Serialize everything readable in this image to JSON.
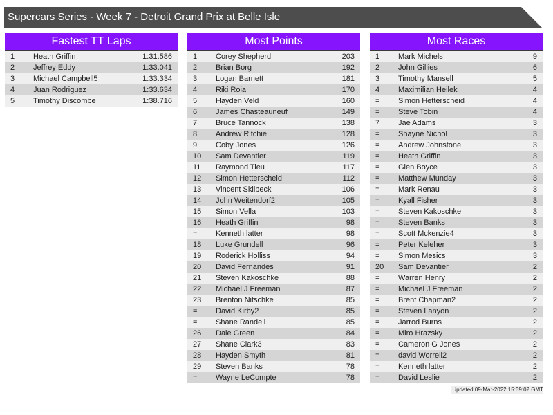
{
  "title": "Supercars Series - Week 7 - Detroit Grand Prix at Belle Isle",
  "colors": {
    "header_bar": "#4d4d4d",
    "panel_header": "#8614fc",
    "row_light": "#efefef",
    "row_dark": "#d5d5d5"
  },
  "panels": [
    {
      "title": "Fastest TT Laps",
      "rows": [
        [
          "1",
          "Heath Griffin",
          "1:31.586"
        ],
        [
          "2",
          "Jeffrey Eddy",
          "1:33.041"
        ],
        [
          "3",
          "Michael Campbell5",
          "1:33.334"
        ],
        [
          "4",
          "Juan Rodriguez",
          "1:33.634"
        ],
        [
          "5",
          "Timothy Discombe",
          "1:38.716"
        ]
      ]
    },
    {
      "title": "Most Points",
      "rows": [
        [
          "1",
          "Corey Shepherd",
          "203"
        ],
        [
          "2",
          "Brian Borg",
          "192"
        ],
        [
          "3",
          "Logan Barnett",
          "181"
        ],
        [
          "4",
          "Riki Roia",
          "170"
        ],
        [
          "5",
          "Hayden Veld",
          "160"
        ],
        [
          "6",
          "James Chasteauneuf",
          "149"
        ],
        [
          "7",
          "Bruce Tannock",
          "138"
        ],
        [
          "8",
          "Andrew Ritchie",
          "128"
        ],
        [
          "9",
          "Coby Jones",
          "126"
        ],
        [
          "10",
          "Sam Devantier",
          "119"
        ],
        [
          "11",
          "Raymond Tieu",
          "117"
        ],
        [
          "12",
          "Simon Hetterscheid",
          "112"
        ],
        [
          "13",
          "Vincent Skilbeck",
          "106"
        ],
        [
          "14",
          "John Weitendorf2",
          "105"
        ],
        [
          "15",
          "Simon Vella",
          "103"
        ],
        [
          "16",
          "Heath Griffin",
          "98"
        ],
        [
          "=",
          "Kenneth latter",
          "98"
        ],
        [
          "18",
          "Luke Grundell",
          "96"
        ],
        [
          "19",
          "Roderick Holliss",
          "94"
        ],
        [
          "20",
          "David Fernandes",
          "91"
        ],
        [
          "21",
          "Steven Kakoschke",
          "88"
        ],
        [
          "22",
          "Michael J Freeman",
          "87"
        ],
        [
          "23",
          "Brenton Nitschke",
          "85"
        ],
        [
          "=",
          "David Kirby2",
          "85"
        ],
        [
          "=",
          "Shane Randell",
          "85"
        ],
        [
          "26",
          "Dale Green",
          "84"
        ],
        [
          "27",
          "Shane Clark3",
          "83"
        ],
        [
          "28",
          "Hayden Smyth",
          "81"
        ],
        [
          "29",
          "Steven Banks",
          "78"
        ],
        [
          "=",
          "Wayne LeCompte",
          "78"
        ]
      ]
    },
    {
      "title": "Most Races",
      "rows": [
        [
          "1",
          "Mark Michels",
          "9"
        ],
        [
          "2",
          "John Gillies",
          "6"
        ],
        [
          "3",
          "Timothy Mansell",
          "5"
        ],
        [
          "4",
          "Maximilian Heilek",
          "4"
        ],
        [
          "=",
          "Simon Hetterscheid",
          "4"
        ],
        [
          "=",
          "Steve Tobin",
          "4"
        ],
        [
          "7",
          "Jae Adams",
          "3"
        ],
        [
          "=",
          "Shayne Nichol",
          "3"
        ],
        [
          "=",
          "Andrew Johnstone",
          "3"
        ],
        [
          "=",
          "Heath Griffin",
          "3"
        ],
        [
          "=",
          "Glen Boyce",
          "3"
        ],
        [
          "=",
          "Matthew Munday",
          "3"
        ],
        [
          "=",
          "Mark Renau",
          "3"
        ],
        [
          "=",
          "Kyall Fisher",
          "3"
        ],
        [
          "=",
          "Steven Kakoschke",
          "3"
        ],
        [
          "=",
          "Steven Banks",
          "3"
        ],
        [
          "=",
          "Scott Mckenzie4",
          "3"
        ],
        [
          "=",
          "Peter Keleher",
          "3"
        ],
        [
          "=",
          "Simon Mesics",
          "3"
        ],
        [
          "20",
          "Sam Devantier",
          "2"
        ],
        [
          "=",
          "Warren Henry",
          "2"
        ],
        [
          "=",
          "Michael J Freeman",
          "2"
        ],
        [
          "=",
          "Brent Chapman2",
          "2"
        ],
        [
          "=",
          "Steven Lanyon",
          "2"
        ],
        [
          "=",
          "Jarrod Burns",
          "2"
        ],
        [
          "=",
          "Miro Hrazsky",
          "2"
        ],
        [
          "=",
          "Cameron G Jones",
          "2"
        ],
        [
          "=",
          "david Worrell2",
          "2"
        ],
        [
          "=",
          "Kenneth latter",
          "2"
        ],
        [
          "=",
          "David Leslie",
          "2"
        ]
      ]
    }
  ],
  "footer": "Updated 09-Mar-2022 15:39:02 GMT"
}
